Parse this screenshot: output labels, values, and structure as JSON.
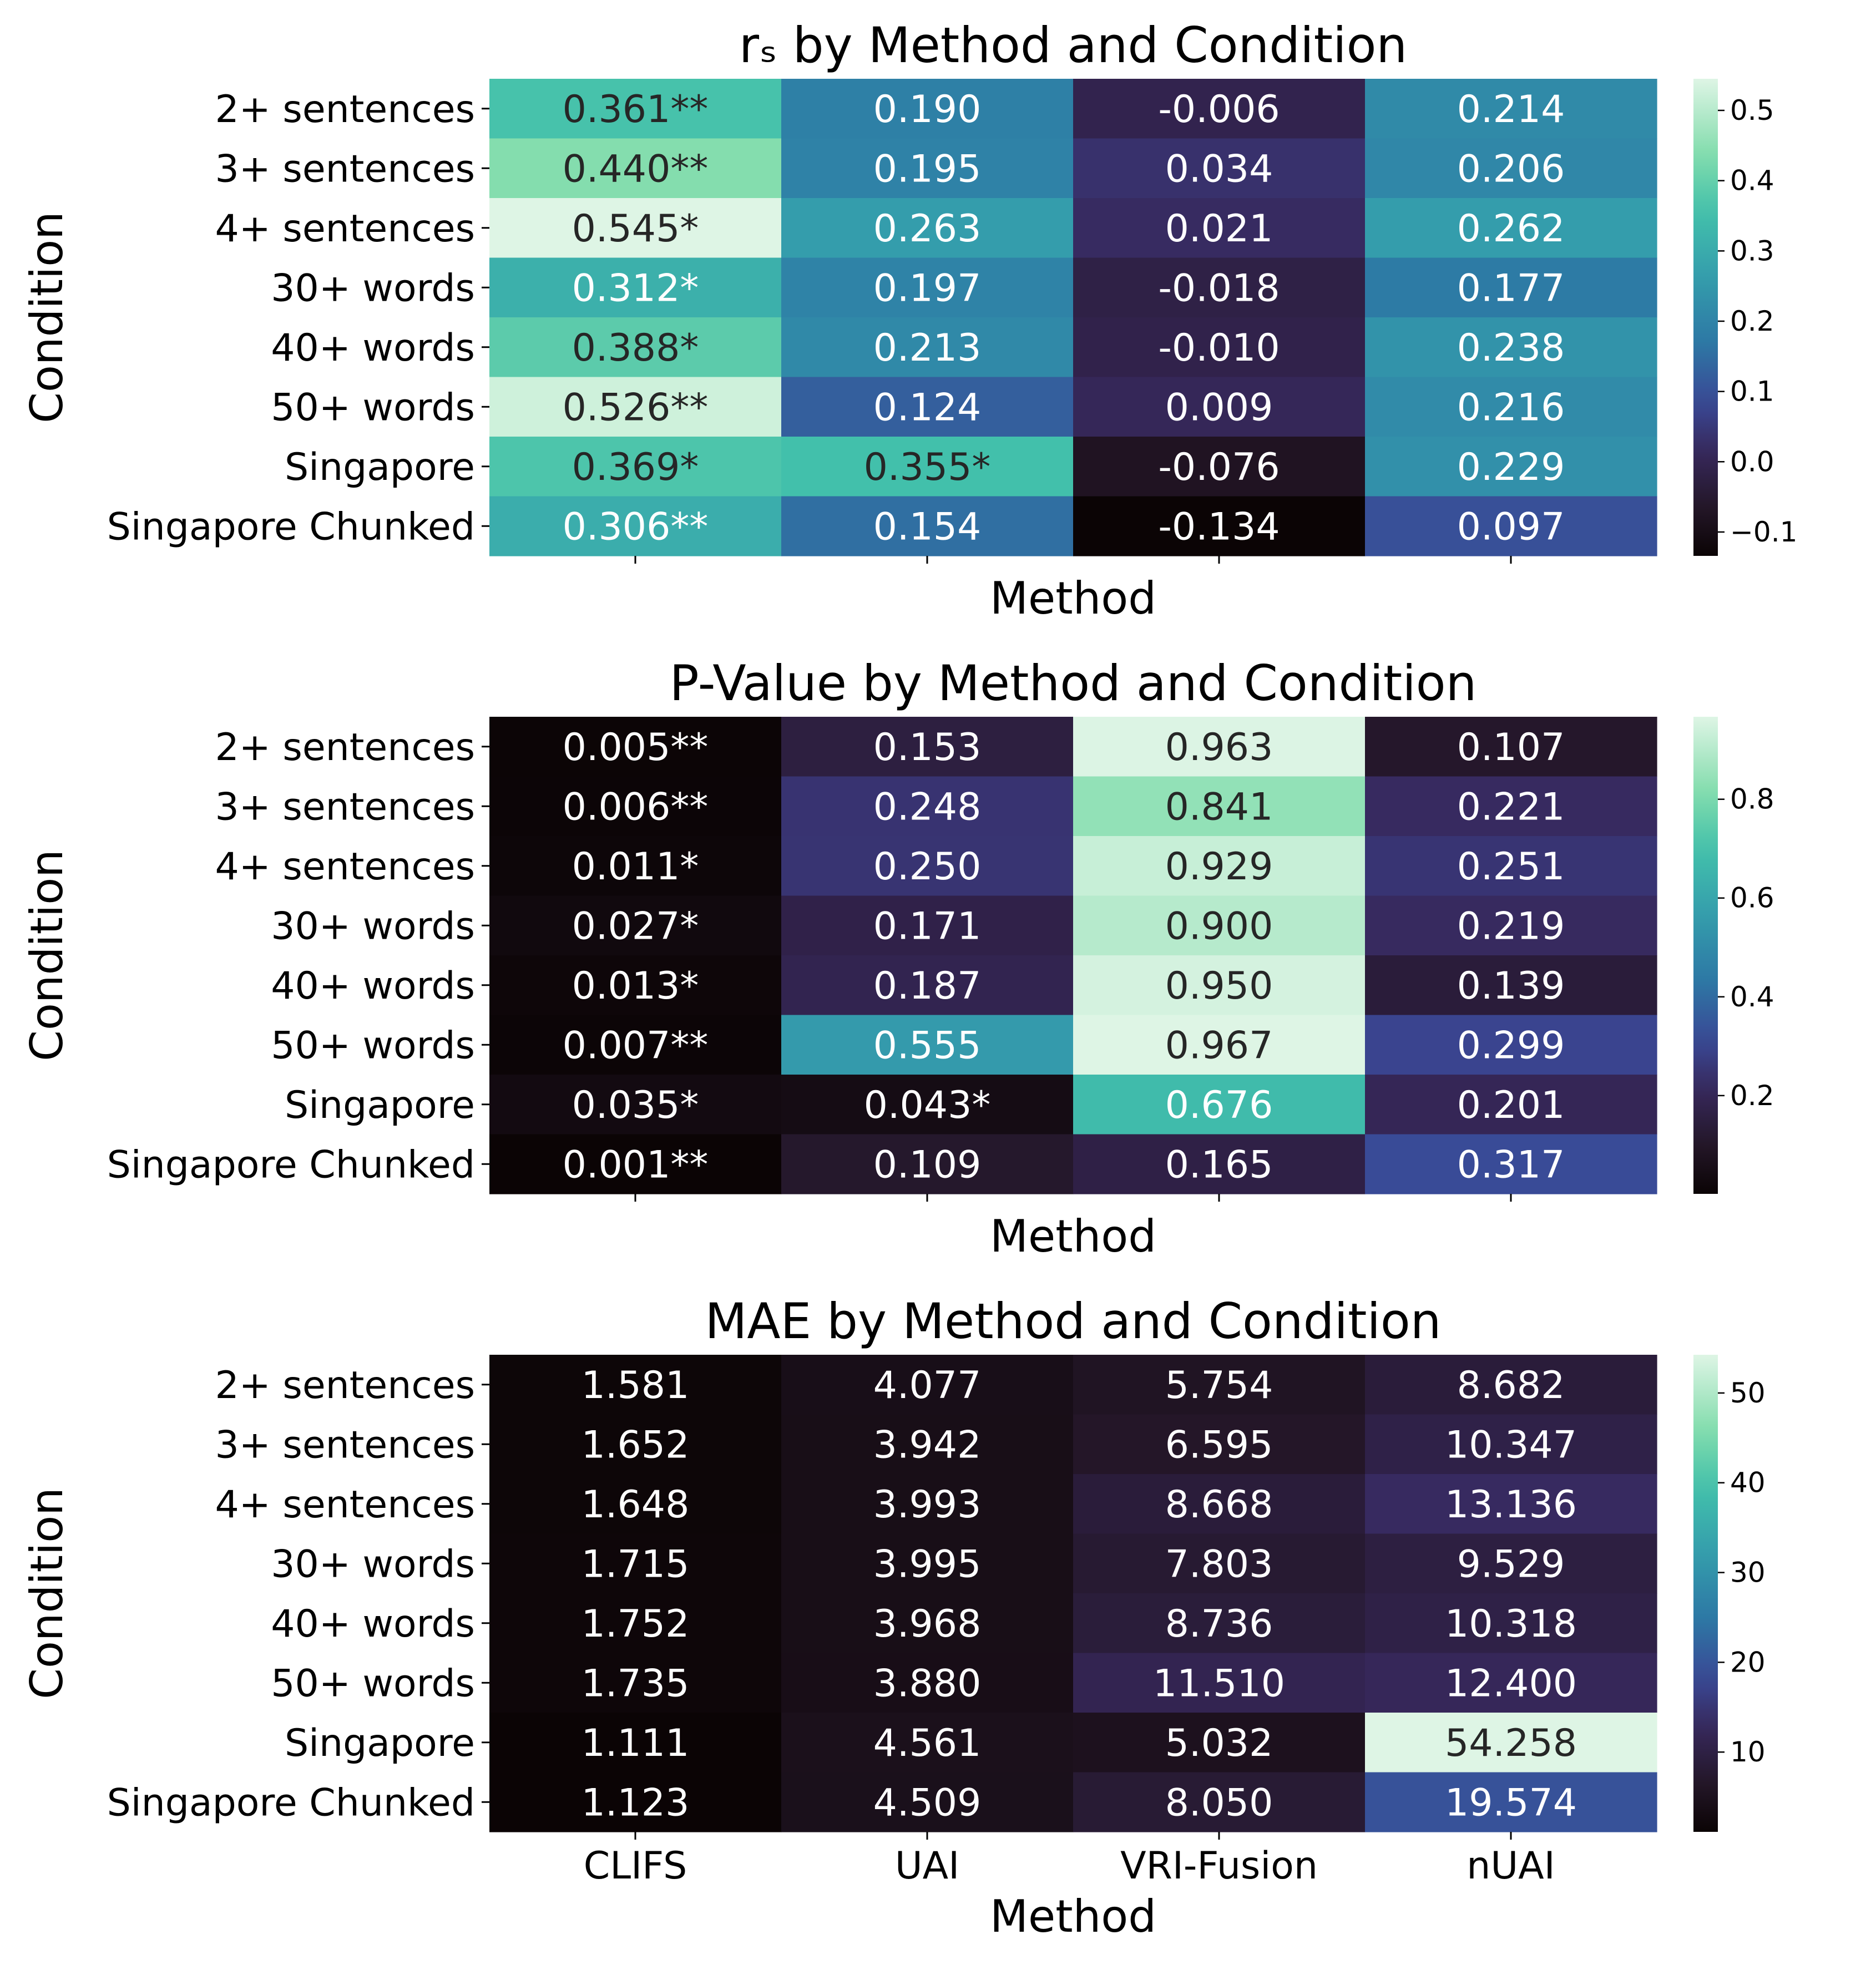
{
  "figure": {
    "columns_label": "Method",
    "rows_label": "Condition"
  },
  "chart_data": [
    {
      "type": "heatmap",
      "title": "rₛ by Method and Condition",
      "xlabel": "Method",
      "ylabel": "Condition",
      "x_tick_labels_shown": false,
      "columns": [
        "CLIFS",
        "UAI",
        "VRI-Fusion",
        "nUAI"
      ],
      "rows": [
        "2+ sentences",
        "3+ sentences",
        "4+ sentences",
        "30+ words",
        "40+ words",
        "50+ words",
        "Singapore",
        "Singapore Chunked"
      ],
      "values": [
        [
          0.361,
          0.19,
          -0.006,
          0.214
        ],
        [
          0.44,
          0.195,
          0.034,
          0.206
        ],
        [
          0.545,
          0.263,
          0.021,
          0.262
        ],
        [
          0.312,
          0.197,
          -0.018,
          0.177
        ],
        [
          0.388,
          0.213,
          -0.01,
          0.238
        ],
        [
          0.526,
          0.124,
          0.009,
          0.216
        ],
        [
          0.369,
          0.355,
          -0.076,
          0.229
        ],
        [
          0.306,
          0.154,
          -0.134,
          0.097
        ]
      ],
      "annotations": [
        [
          "0.361**",
          "0.190",
          "-0.006",
          "0.214"
        ],
        [
          "0.440**",
          "0.195",
          "0.034",
          "0.206"
        ],
        [
          "0.545*",
          "0.263",
          "0.021",
          "0.262"
        ],
        [
          "0.312*",
          "0.197",
          "-0.018",
          "0.177"
        ],
        [
          "0.388*",
          "0.213",
          "-0.010",
          "0.238"
        ],
        [
          "0.526**",
          "0.124",
          "0.009",
          "0.216"
        ],
        [
          "0.369*",
          "0.355*",
          "-0.076",
          "0.229"
        ],
        [
          "0.306**",
          "0.154",
          "-0.134",
          "0.097"
        ]
      ],
      "colorbar": {
        "vmin": -0.134,
        "vmax": 0.545,
        "ticks": [
          -0.1,
          0.0,
          0.1,
          0.2,
          0.3,
          0.4,
          0.5
        ],
        "tick_labels": [
          "−0.1",
          "0.0",
          "0.1",
          "0.2",
          "0.3",
          "0.4",
          "0.5"
        ]
      },
      "colormap": "mako"
    },
    {
      "type": "heatmap",
      "title": "P-Value by Method and Condition",
      "xlabel": "Method",
      "ylabel": "Condition",
      "x_tick_labels_shown": false,
      "columns": [
        "CLIFS",
        "UAI",
        "VRI-Fusion",
        "nUAI"
      ],
      "rows": [
        "2+ sentences",
        "3+ sentences",
        "4+ sentences",
        "30+ words",
        "40+ words",
        "50+ words",
        "Singapore",
        "Singapore Chunked"
      ],
      "values": [
        [
          0.005,
          0.153,
          0.963,
          0.107
        ],
        [
          0.006,
          0.248,
          0.841,
          0.221
        ],
        [
          0.011,
          0.25,
          0.929,
          0.251
        ],
        [
          0.027,
          0.171,
          0.9,
          0.219
        ],
        [
          0.013,
          0.187,
          0.95,
          0.139
        ],
        [
          0.007,
          0.555,
          0.967,
          0.299
        ],
        [
          0.035,
          0.043,
          0.676,
          0.201
        ],
        [
          0.001,
          0.109,
          0.165,
          0.317
        ]
      ],
      "annotations": [
        [
          "0.005**",
          "0.153",
          "0.963",
          "0.107"
        ],
        [
          "0.006**",
          "0.248",
          "0.841",
          "0.221"
        ],
        [
          "0.011*",
          "0.250",
          "0.929",
          "0.251"
        ],
        [
          "0.027*",
          "0.171",
          "0.900",
          "0.219"
        ],
        [
          "0.013*",
          "0.187",
          "0.950",
          "0.139"
        ],
        [
          "0.007**",
          "0.555",
          "0.967",
          "0.299"
        ],
        [
          "0.035*",
          "0.043*",
          "0.676",
          "0.201"
        ],
        [
          "0.001**",
          "0.109",
          "0.165",
          "0.317"
        ]
      ],
      "colorbar": {
        "vmin": 0.001,
        "vmax": 0.967,
        "ticks": [
          0.2,
          0.4,
          0.6,
          0.8
        ],
        "tick_labels": [
          "0.2",
          "0.4",
          "0.6",
          "0.8"
        ]
      },
      "colormap": "mako"
    },
    {
      "type": "heatmap",
      "title": "MAE by Method and Condition",
      "xlabel": "Method",
      "ylabel": "Condition",
      "x_tick_labels_shown": true,
      "columns": [
        "CLIFS",
        "UAI",
        "VRI-Fusion",
        "nUAI"
      ],
      "rows": [
        "2+ sentences",
        "3+ sentences",
        "4+ sentences",
        "30+ words",
        "40+ words",
        "50+ words",
        "Singapore",
        "Singapore Chunked"
      ],
      "values": [
        [
          1.581,
          4.077,
          5.754,
          8.682
        ],
        [
          1.652,
          3.942,
          6.595,
          10.347
        ],
        [
          1.648,
          3.993,
          8.668,
          13.136
        ],
        [
          1.715,
          3.995,
          7.803,
          9.529
        ],
        [
          1.752,
          3.968,
          8.736,
          10.318
        ],
        [
          1.735,
          3.88,
          11.51,
          12.4
        ],
        [
          1.111,
          4.561,
          5.032,
          54.258
        ],
        [
          1.123,
          4.509,
          8.05,
          19.574
        ]
      ],
      "annotations": [
        [
          "1.581",
          "4.077",
          "5.754",
          "8.682"
        ],
        [
          "1.652",
          "3.942",
          "6.595",
          "10.347"
        ],
        [
          "1.648",
          "3.993",
          "8.668",
          "13.136"
        ],
        [
          "1.715",
          "3.995",
          "7.803",
          "9.529"
        ],
        [
          "1.752",
          "3.968",
          "8.736",
          "10.318"
        ],
        [
          "1.735",
          "3.880",
          "11.510",
          "12.400"
        ],
        [
          "1.111",
          "4.561",
          "5.032",
          "54.258"
        ],
        [
          "1.123",
          "4.509",
          "8.050",
          "19.574"
        ]
      ],
      "colorbar": {
        "vmin": 1.111,
        "vmax": 54.258,
        "ticks": [
          10,
          20,
          30,
          40,
          50
        ],
        "tick_labels": [
          "10",
          "20",
          "30",
          "40",
          "50"
        ]
      },
      "colormap": "mako"
    }
  ]
}
